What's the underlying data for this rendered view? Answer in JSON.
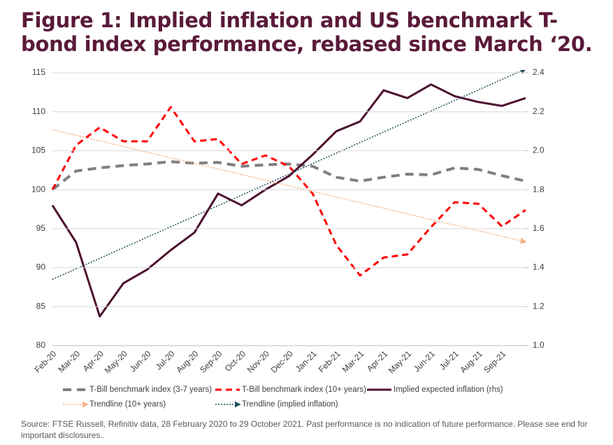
{
  "chart_data": {
    "type": "line",
    "title": "Figure 1: Implied inflation and US benchmark T-bond index performance, rebased since March ‘20.",
    "source": "Source: FTSE Russell, Refinitiv data, 28 February 2020 to 29 October 2021. Past performance is no indication of future performance. Please see end for important disclosures..",
    "categories": [
      "Feb-20",
      "Mar-20",
      "Apr-20",
      "May-20",
      "Jun-20",
      "Jul-20",
      "Aug-20",
      "Sep-20",
      "Oct-20",
      "Nov-20",
      "Dec-20",
      "Jan-21",
      "Feb-21",
      "Mar-21",
      "Apr-21",
      "May-21",
      "Jun-21",
      "Jul-21",
      "Aug-21",
      "Sep-21",
      null
    ],
    "ylim": [
      80,
      115
    ],
    "yticks": [
      80,
      85,
      90,
      95,
      100,
      105,
      110,
      115
    ],
    "y2lim": [
      1.0,
      2.4
    ],
    "y2ticks": [
      {
        "value": 1.0,
        "label": "1.0"
      },
      {
        "value": 1.2,
        "label": "1.2"
      },
      {
        "value": 1.4,
        "label": "1.4"
      },
      {
        "value": 1.6,
        "label": "1.6"
      },
      {
        "value": 1.8,
        "label": "1.8"
      },
      {
        "value": 2.0,
        "label": "2.0"
      },
      {
        "value": 2.2,
        "label": "2.2"
      },
      {
        "value": 2.4,
        "label": "2.4"
      }
    ],
    "grid": true,
    "series": [
      {
        "name": "T-Bill benchmark index (3-7 years)",
        "color": "#7f7f7f",
        "dash": "dashed",
        "width": 4,
        "values": [
          100,
          102.4,
          102.8,
          103.1,
          103.3,
          103.6,
          103.4,
          103.5,
          103.0,
          103.2,
          103.3,
          103.0,
          101.6,
          101.1,
          101.6,
          102.0,
          101.9,
          102.8,
          102.6,
          101.8,
          101.1
        ]
      },
      {
        "name": "T-Bill benchmark index (10+ years)",
        "color": "#ff0000",
        "dash": "dashed",
        "width": 3,
        "values": [
          100,
          105.7,
          108.0,
          106.2,
          106.2,
          110.6,
          106.2,
          106.5,
          103.3,
          104.4,
          103.0,
          99.5,
          92.9,
          89.0,
          91.3,
          91.7,
          95.2,
          98.4,
          98.2,
          95.3,
          97.4
        ]
      },
      {
        "name": "Implied expected inflation (rhs)",
        "color": "#4d1030",
        "dash": "solid",
        "width": 3,
        "axis": "y2",
        "values": [
          1.72,
          1.53,
          1.15,
          1.32,
          1.39,
          1.49,
          1.58,
          1.78,
          1.72,
          1.8,
          1.87,
          1.98,
          2.1,
          2.15,
          2.31,
          2.27,
          2.34,
          2.28,
          2.25,
          2.23,
          2.27
        ]
      },
      {
        "name": "Trendline (10+ years)",
        "color": "#f4b183",
        "dash": "dotted",
        "width": 1.5,
        "arrow": true,
        "values": [
          107.7,
          106.98,
          106.26,
          105.54,
          104.82,
          104.1,
          103.38,
          102.66,
          101.94,
          101.22,
          100.5,
          99.78,
          99.06,
          98.34,
          97.62,
          96.9,
          96.18,
          95.46,
          94.74,
          94.02,
          93.3
        ]
      },
      {
        "name": "Trendline (implied inflation)",
        "color": "#1f4e5a",
        "dash": "dotted",
        "width": 1.5,
        "arrow": true,
        "axis": "y2",
        "values": [
          1.34,
          1.394,
          1.448,
          1.502,
          1.556,
          1.61,
          1.664,
          1.718,
          1.772,
          1.826,
          1.88,
          1.934,
          1.988,
          2.042,
          2.096,
          2.15,
          2.204,
          2.258,
          2.312,
          2.366,
          2.42
        ]
      }
    ]
  }
}
